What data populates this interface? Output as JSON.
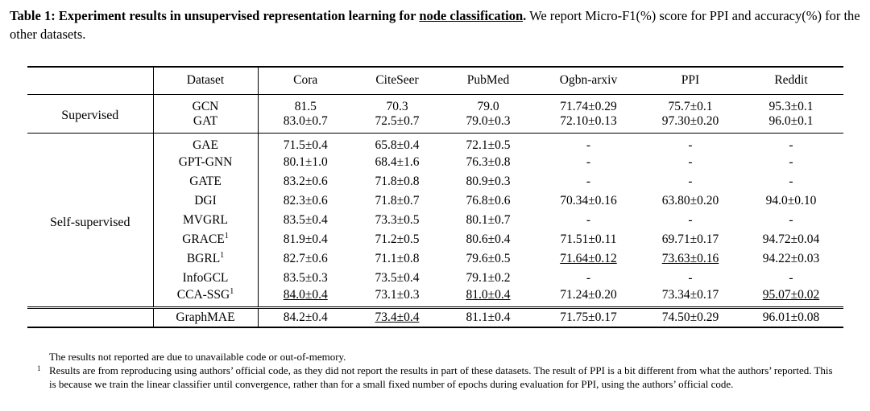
{
  "caption": {
    "label": "Table 1:",
    "bold_text": " Experiment results in unsupervised representation learning for ",
    "bold_underline": "node classification",
    "bold_period": ".",
    "rest": " We report Micro-F1(%) score for PPI and accuracy(%) for the other datasets."
  },
  "table": {
    "headers": [
      "Dataset",
      "Cora",
      "CiteSeer",
      "PubMed",
      "Ogbn-arxiv",
      "PPI",
      "Reddit"
    ],
    "groups": [
      {
        "name": "Supervised",
        "rows": [
          {
            "method": "GCN",
            "sup": "",
            "cells": [
              {
                "v": "81.5"
              },
              {
                "v": "70.3"
              },
              {
                "v": "79.0"
              },
              {
                "v": "71.74±0.29"
              },
              {
                "v": "75.7±0.1"
              },
              {
                "v": "95.3±0.1"
              }
            ]
          },
          {
            "method": "GAT",
            "sup": "",
            "cells": [
              {
                "v": "83.0±0.7"
              },
              {
                "v": "72.5±0.7"
              },
              {
                "v": "79.0±0.3"
              },
              {
                "v": "72.10±0.13"
              },
              {
                "v": "97.30±0.20"
              },
              {
                "v": "96.0±0.1"
              }
            ]
          }
        ]
      },
      {
        "name": "Self-supervised",
        "rows": [
          {
            "method": "GAE",
            "sup": "",
            "cells": [
              {
                "v": "71.5±0.4"
              },
              {
                "v": "65.8±0.4"
              },
              {
                "v": "72.1±0.5"
              },
              {
                "v": "-"
              },
              {
                "v": "-"
              },
              {
                "v": "-"
              }
            ]
          },
          {
            "method": "GPT-GNN",
            "sup": "",
            "cells": [
              {
                "v": "80.1±1.0"
              },
              {
                "v": "68.4±1.6"
              },
              {
                "v": "76.3±0.8"
              },
              {
                "v": "-"
              },
              {
                "v": "-"
              },
              {
                "v": "-"
              }
            ]
          },
          {
            "method": "GATE",
            "sup": "",
            "cells": [
              {
                "v": "83.2±0.6"
              },
              {
                "v": "71.8±0.8"
              },
              {
                "v": "80.9±0.3"
              },
              {
                "v": "-"
              },
              {
                "v": "-"
              },
              {
                "v": "-"
              }
            ]
          },
          {
            "method": "DGI",
            "sup": "",
            "cells": [
              {
                "v": "82.3±0.6"
              },
              {
                "v": "71.8±0.7"
              },
              {
                "v": "76.8±0.6"
              },
              {
                "v": "70.34±0.16"
              },
              {
                "v": "63.80±0.20"
              },
              {
                "v": "94.0±0.10"
              }
            ]
          },
          {
            "method": "MVGRL",
            "sup": "",
            "cells": [
              {
                "v": "83.5±0.4"
              },
              {
                "v": "73.3±0.5"
              },
              {
                "v": "80.1±0.7"
              },
              {
                "v": "-"
              },
              {
                "v": "-"
              },
              {
                "v": "-"
              }
            ]
          },
          {
            "method": "GRACE",
            "sup": "1",
            "cells": [
              {
                "v": "81.9±0.4"
              },
              {
                "v": "71.2±0.5"
              },
              {
                "v": "80.6±0.4"
              },
              {
                "v": "71.51±0.11"
              },
              {
                "v": "69.71±0.17"
              },
              {
                "v": "94.72±0.04"
              }
            ]
          },
          {
            "method": "BGRL",
            "sup": "1",
            "cells": [
              {
                "v": "82.7±0.6"
              },
              {
                "v": "71.1±0.8"
              },
              {
                "v": "79.6±0.5"
              },
              {
                "v": "71.64±0.12",
                "u": true
              },
              {
                "v": "73.63±0.16",
                "u": true
              },
              {
                "v": "94.22±0.03"
              }
            ]
          },
          {
            "method": "InfoGCL",
            "sup": "",
            "cells": [
              {
                "v": "83.5±0.3"
              },
              {
                "v": "73.5±0.4",
                "b": true
              },
              {
                "v": "79.1±0.2"
              },
              {
                "v": "-"
              },
              {
                "v": "-"
              },
              {
                "v": "-"
              }
            ]
          },
          {
            "method": "CCA-SSG",
            "sup": "1",
            "cells": [
              {
                "v": "84.0±0.4",
                "u": true
              },
              {
                "v": "73.1±0.3"
              },
              {
                "v": "81.0±0.4",
                "u": true
              },
              {
                "v": "71.24±0.20"
              },
              {
                "v": "73.34±0.17"
              },
              {
                "v": "95.07±0.02",
                "u": true
              }
            ]
          }
        ]
      }
    ],
    "final_row": {
      "method": "GraphMAE",
      "cells": [
        {
          "v": "84.2±0.4",
          "b": true
        },
        {
          "v": "73.4±0.4",
          "u": true
        },
        {
          "v": "81.1±0.4",
          "b": true
        },
        {
          "v": "71.75±0.17",
          "b": true
        },
        {
          "v": "74.50±0.29",
          "b": true
        },
        {
          "v": "96.01±0.08",
          "b": true
        }
      ]
    }
  },
  "notes": {
    "note1": "The results not reported are due to unavailable code or out-of-memory.",
    "note2_marker": "1",
    "note2": "Results are from reproducing using authors’ official code, as they did not report the results in part of these datasets. The result of PPI is a bit different from what the authors’ reported. This is because we train the linear classifier until convergence, rather than for a small fixed number of epochs during evaluation for PPI, using the authors’ official code."
  }
}
